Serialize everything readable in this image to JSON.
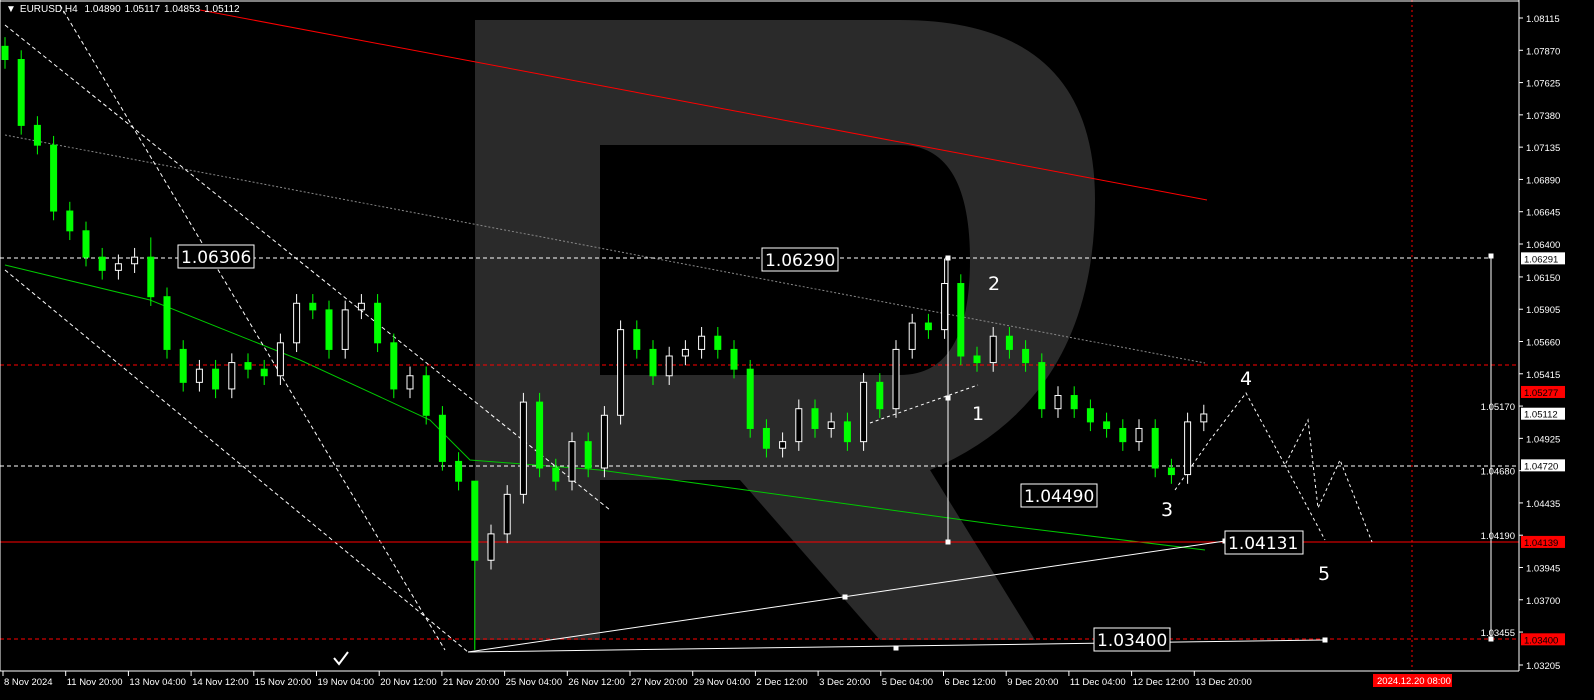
{
  "header": {
    "symbol": "EURUSD,H4",
    "open": "1.04890",
    "high": "1.05117",
    "low": "1.04853",
    "close": "1.05112"
  },
  "colors": {
    "background": "#000000",
    "bull": "#ffffff",
    "bear": "#00ff00",
    "resistance": "#ff0000",
    "ma_slow": "#ff0000",
    "ma_fast": "#00c800",
    "watermark": "#2a2a2a"
  },
  "chart_data": {
    "type": "candlestick",
    "ylim": [
      1.03205,
      1.08115
    ],
    "y_ticks": [
      "1.08115",
      "1.07870",
      "1.07625",
      "1.07380",
      "1.07135",
      "1.06890",
      "1.06645",
      "1.06400",
      "1.06150",
      "1.05905",
      "1.05660",
      "1.05415",
      "1.05170",
      "1.04925",
      "1.04680",
      "1.04435",
      "1.04190",
      "1.03945",
      "1.03700",
      "1.03455",
      "1.03205"
    ],
    "x_ticks": [
      "8 Nov 2024",
      "11 Nov 20:00",
      "13 Nov 04:00",
      "14 Nov 12:00",
      "15 Nov 20:00",
      "19 Nov 04:00",
      "20 Nov 12:00",
      "21 Nov 20:00",
      "25 Nov 04:00",
      "26 Nov 12:00",
      "27 Nov 20:00",
      "29 Nov 04:00",
      "2 Dec 12:00",
      "3 Dec 20:00",
      "5 Dec 04:00",
      "6 Dec 12:00",
      "9 Dec 20:00",
      "11 Dec 04:00",
      "12 Dec 12:00",
      "13 Dec 20:00"
    ],
    "future_time_label": "2024.12.20 08:00",
    "first_open": 1.079,
    "close": [
      1.078,
      1.073,
      1.0715,
      1.0665,
      1.065,
      1.063,
      1.062,
      1.0625,
      1.063,
      1.06,
      1.056,
      1.0535,
      1.0545,
      1.053,
      1.055,
      1.0545,
      1.054,
      1.0565,
      1.0595,
      1.059,
      1.056,
      1.059,
      1.0595,
      1.0565,
      1.053,
      1.054,
      1.051,
      1.0475,
      1.046,
      1.04,
      1.042,
      1.045,
      1.052,
      1.047,
      1.046,
      1.049,
      1.047,
      1.051,
      1.0575,
      1.056,
      1.054,
      1.0555,
      1.056,
      1.057,
      1.056,
      1.0545,
      1.05,
      1.0485,
      1.049,
      1.0515,
      1.05,
      1.0505,
      1.049,
      1.0535,
      1.0515,
      1.056,
      1.058,
      1.0575,
      1.061,
      1.0555,
      1.055,
      1.057,
      1.056,
      1.055,
      1.0515,
      1.0525,
      1.0515,
      1.0505,
      1.05,
      1.049,
      1.05,
      1.047,
      1.0465,
      1.0505,
      1.0511
    ],
    "extremes": {
      "9": {
        "high": 1.0645
      },
      "29": {
        "high": 1.0435,
        "low": 1.0332
      },
      "58": {
        "high": 1.0629
      }
    },
    "price_tags": [
      {
        "label": "1.06291",
        "value": 1.06291,
        "style": "white"
      },
      {
        "label": "1.05277",
        "value": 1.05277,
        "style": "red"
      },
      {
        "label": "1.05112",
        "value": 1.05112,
        "style": "white"
      },
      {
        "label": "1.04720",
        "value": 1.0472,
        "style": "white"
      },
      {
        "label": "1.04139",
        "value": 1.04139,
        "style": "red"
      },
      {
        "label": "1.03400",
        "value": 1.034,
        "style": "red"
      }
    ],
    "level_labels": [
      "1.06306",
      "1.06290",
      "1.04490",
      "1.04131",
      "1.03400"
    ],
    "wave_labels": [
      "1",
      "2",
      "3",
      "4",
      "5"
    ]
  }
}
